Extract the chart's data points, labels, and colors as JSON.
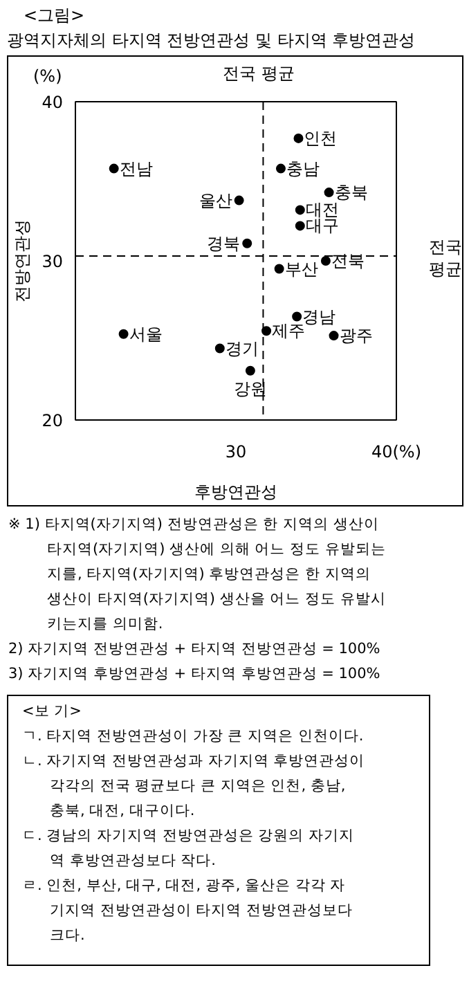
{
  "chart_data": {
    "type": "scatter",
    "title": "광역지자체의 타지역 전방연관성 및 타지역 후방연관성",
    "xlabel": "후방연관성",
    "ylabel": "전방연관성",
    "x": [
      33.9,
      22.4,
      32.8,
      35.8,
      30.2,
      34.0,
      34.0,
      30.7,
      32.7,
      35.6,
      33.8,
      31.9,
      23.0,
      36.1,
      29.0,
      30.9
    ],
    "values": [
      37.7,
      35.8,
      35.8,
      34.3,
      33.8,
      33.2,
      32.2,
      31.1,
      29.5,
      30.0,
      26.5,
      25.6,
      25.4,
      25.3,
      24.5,
      23.1
    ],
    "color": "#000000",
    "marker": "circle",
    "xlim": [
      20,
      40
    ],
    "ylim": [
      20,
      40
    ],
    "xticks": [
      30,
      {
        "value": 40,
        "label": "40(%)"
      }
    ],
    "yticks": [
      20,
      30,
      40
    ],
    "grid": false,
    "ref_lines": [
      {
        "axis": "x",
        "value": 31.7,
        "label": "전국 평균",
        "line_style": "dashed",
        "color": "#000000"
      },
      {
        "axis": "y",
        "value": 30.3,
        "label": "전국 평균",
        "line_style": "dashed",
        "color": "#000000"
      }
    ],
    "annotations": [
      {
        "text": "인천",
        "x": 33.9,
        "y": 37.7
      },
      {
        "text": "전남",
        "x": 22.4,
        "y": 35.8
      },
      {
        "text": "충남",
        "x": 32.8,
        "y": 35.8
      },
      {
        "text": "충북",
        "x": 35.8,
        "y": 34.3
      },
      {
        "text": "울산",
        "x": 30.2,
        "y": 33.8
      },
      {
        "text": "대전",
        "x": 34.0,
        "y": 33.2
      },
      {
        "text": "대구",
        "x": 34.0,
        "y": 32.2
      },
      {
        "text": "경북",
        "x": 30.7,
        "y": 31.1
      },
      {
        "text": "부산",
        "x": 32.7,
        "y": 29.5
      },
      {
        "text": "전북",
        "x": 35.6,
        "y": 30.0
      },
      {
        "text": "경남",
        "x": 33.8,
        "y": 26.5
      },
      {
        "text": "제주",
        "x": 31.9,
        "y": 25.6
      },
      {
        "text": "서울",
        "x": 23.0,
        "y": 25.4
      },
      {
        "text": "광주",
        "x": 36.1,
        "y": 25.3
      },
      {
        "text": "경기",
        "x": 29.0,
        "y": 24.5
      },
      {
        "text": "강원",
        "x": 30.9,
        "y": 23.1
      },
      "<그림>",
      "(%)",
      "※ 1) 타지역(자기지역) 전방연관성은 한 지역의 생산이\n타지역(자기지역) 생산에 의해 어느 정도 유발되는\n지를, 타지역(자기지역) 후방연관성은 한 지역의\n생산이 타지역(자기지역) 생산을 어느 정도 유발시\n키는지를 의미함.",
      "2) 자기지역 전방연관성 + 타지역 전방연관성 = 100%",
      "3) 자기지역 후방연관성 + 타지역 후방연관성 = 100%",
      "<보  기>",
      "ㄱ. 타지역 전방연관성이 가장 큰 지역은 인천이다.",
      "ㄴ. 자기지역 전방연관성과 자기지역 후방연관성이\n각각의 전국 평균보다 큰 지역은 인천, 충남,\n충북, 대전, 대구이다.",
      "ㄷ. 경남의 자기지역 전방연관성은 강원의 자기지\n역 후방연관성보다 작다.",
      "ㄹ. 인천, 부산, 대구, 대전, 광주, 울산은 각각 자\n기지역 전방연관성이 타지역 전방연관성보다\n크다."
    ]
  }
}
